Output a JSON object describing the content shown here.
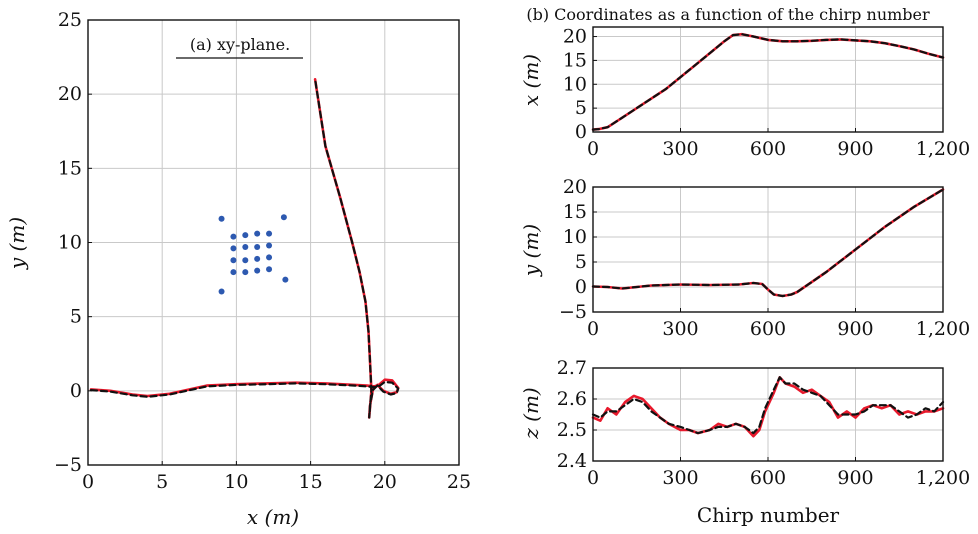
{
  "chart_data": [
    {
      "type": "line",
      "panel": "a",
      "title": "(a) xy-plane.",
      "xlabel": "x (m)",
      "ylabel": "y (m)",
      "xlim": [
        0,
        25
      ],
      "ylim": [
        -5,
        25
      ],
      "xticks": [
        0,
        5,
        10,
        15,
        20,
        25
      ],
      "yticks": [
        -5,
        0,
        5,
        10,
        15,
        20,
        25
      ],
      "grid": true,
      "series": [
        {
          "style": "solid",
          "color": "#e8192c",
          "x": [
            0.2,
            1.5,
            3.0,
            4.0,
            5.5,
            8.0,
            10.0,
            12.0,
            14.0,
            16.0,
            18.0,
            18.8,
            19.3,
            19.6,
            20.0,
            20.5,
            20.9,
            20.8,
            20.4,
            19.9,
            19.5,
            19.2,
            19.0,
            18.95,
            19.1,
            19.0,
            18.9,
            18.7,
            18.3,
            17.8,
            17.0,
            16.0,
            15.3
          ],
          "y": [
            0.1,
            0.0,
            -0.25,
            -0.35,
            -0.2,
            0.35,
            0.45,
            0.5,
            0.55,
            0.5,
            0.4,
            0.35,
            0.3,
            0.4,
            0.75,
            0.7,
            0.2,
            -0.1,
            -0.2,
            0.0,
            0.4,
            0.1,
            -1.0,
            -1.8,
            0.0,
            2.0,
            4.0,
            6.0,
            8.0,
            10.0,
            13.0,
            16.5,
            21.0
          ]
        },
        {
          "style": "dashed",
          "color": "#111111",
          "x": [
            0.2,
            1.5,
            3.0,
            4.0,
            5.5,
            8.0,
            10.0,
            12.0,
            14.0,
            16.0,
            18.0,
            18.8,
            19.3,
            19.6,
            20.0,
            20.5,
            20.9,
            20.8,
            20.4,
            19.9,
            19.5,
            19.2,
            19.0,
            18.95,
            19.1,
            19.0,
            18.9,
            18.7,
            18.3,
            17.8,
            17.0,
            16.0,
            15.3
          ],
          "y": [
            0.05,
            -0.05,
            -0.3,
            -0.4,
            -0.25,
            0.3,
            0.4,
            0.45,
            0.5,
            0.45,
            0.35,
            0.3,
            0.25,
            0.3,
            0.6,
            0.55,
            0.15,
            -0.15,
            -0.25,
            -0.05,
            0.35,
            0.05,
            -1.0,
            -1.8,
            0.0,
            2.0,
            4.0,
            6.0,
            8.0,
            10.0,
            13.0,
            16.5,
            21.0
          ]
        }
      ],
      "scatter": {
        "color": "#2d59b0",
        "x": [
          9.0,
          13.2,
          9.0,
          13.3,
          9.8,
          10.6,
          11.4,
          12.2,
          9.8,
          10.6,
          11.4,
          12.2,
          9.8,
          10.6,
          11.4,
          12.2,
          9.8,
          10.6,
          11.4,
          12.2
        ],
        "y": [
          11.6,
          11.7,
          6.7,
          7.5,
          10.4,
          10.5,
          10.6,
          10.6,
          9.6,
          9.7,
          9.7,
          9.8,
          8.8,
          8.8,
          8.9,
          9.0,
          8.0,
          8.0,
          8.1,
          8.2
        ]
      }
    },
    {
      "type": "line",
      "panel": "b-x",
      "title": "(b) Coordinates as a function of the chirp number",
      "xlabel": "",
      "ylabel": "x (m)",
      "xlim": [
        0,
        1200
      ],
      "ylim": [
        0,
        22
      ],
      "xticks": [
        0,
        300,
        600,
        900,
        1200
      ],
      "xticklabels": [
        "0",
        "300",
        "600",
        "900",
        "1,200"
      ],
      "yticks": [
        0,
        5,
        10,
        15,
        20
      ],
      "grid": true,
      "x": [
        0,
        20,
        50,
        100,
        150,
        200,
        250,
        300,
        350,
        400,
        450,
        480,
        510,
        550,
        600,
        650,
        700,
        750,
        800,
        850,
        900,
        950,
        1000,
        1050,
        1100,
        1150,
        1200
      ],
      "series": [
        {
          "style": "solid",
          "color": "#e8192c",
          "values": [
            0.5,
            0.6,
            1.0,
            3.0,
            5.0,
            7.0,
            9.0,
            11.5,
            14.0,
            16.5,
            19.0,
            20.3,
            20.5,
            20.0,
            19.3,
            19.0,
            19.0,
            19.1,
            19.3,
            19.4,
            19.2,
            19.0,
            18.6,
            18.0,
            17.3,
            16.4,
            15.6
          ]
        },
        {
          "style": "dashed",
          "color": "#111111",
          "values": [
            0.5,
            0.6,
            1.0,
            3.0,
            5.0,
            7.0,
            9.0,
            11.5,
            14.0,
            16.5,
            19.0,
            20.3,
            20.5,
            20.0,
            19.3,
            19.0,
            19.0,
            19.1,
            19.3,
            19.4,
            19.2,
            19.0,
            18.6,
            18.0,
            17.3,
            16.4,
            15.6
          ]
        }
      ]
    },
    {
      "type": "line",
      "panel": "b-y",
      "title": "",
      "xlabel": "",
      "ylabel": "y (m)",
      "xlim": [
        0,
        1200
      ],
      "ylim": [
        -5,
        20
      ],
      "xticks": [
        0,
        300,
        600,
        900,
        1200
      ],
      "xticklabels": [
        "0",
        "300",
        "600",
        "900",
        "1,200"
      ],
      "yticks": [
        -5,
        0,
        5,
        10,
        15,
        20
      ],
      "grid": true,
      "x": [
        0,
        50,
        100,
        150,
        200,
        300,
        400,
        500,
        550,
        580,
        600,
        620,
        650,
        680,
        700,
        750,
        800,
        900,
        1000,
        1100,
        1200
      ],
      "series": [
        {
          "style": "solid",
          "color": "#e8192c",
          "values": [
            0.1,
            0.0,
            -0.3,
            0.0,
            0.3,
            0.5,
            0.4,
            0.5,
            0.8,
            0.6,
            -0.5,
            -1.5,
            -1.8,
            -1.5,
            -1.0,
            1.0,
            3.0,
            7.5,
            12.0,
            16.0,
            19.5
          ]
        },
        {
          "style": "dashed",
          "color": "#111111",
          "values": [
            0.1,
            0.0,
            -0.3,
            0.0,
            0.3,
            0.5,
            0.4,
            0.5,
            0.8,
            0.6,
            -0.5,
            -1.5,
            -1.8,
            -1.5,
            -1.0,
            1.0,
            3.0,
            7.5,
            12.0,
            16.0,
            19.5
          ]
        }
      ]
    },
    {
      "type": "line",
      "panel": "b-z",
      "title": "",
      "xlabel": "Chirp number",
      "ylabel": "z (m)",
      "xlim": [
        0,
        1200
      ],
      "ylim": [
        2.4,
        2.7
      ],
      "xticks": [
        0,
        300,
        600,
        900,
        1200
      ],
      "xticklabels": [
        "0",
        "300",
        "600",
        "900",
        "1,200"
      ],
      "yticks": [
        2.4,
        2.5,
        2.6,
        2.7
      ],
      "yticklabels": [
        "2.4",
        "2.5",
        "2.6",
        "2.7"
      ],
      "grid": true,
      "x": [
        0,
        25,
        50,
        80,
        110,
        140,
        170,
        200,
        230,
        260,
        300,
        330,
        360,
        400,
        430,
        460,
        490,
        520,
        550,
        570,
        590,
        620,
        640,
        660,
        690,
        720,
        750,
        780,
        810,
        840,
        870,
        900,
        930,
        960,
        990,
        1020,
        1050,
        1080,
        1110,
        1140,
        1170,
        1200
      ],
      "series": [
        {
          "style": "solid",
          "color": "#e8192c",
          "values": [
            2.54,
            2.53,
            2.57,
            2.55,
            2.59,
            2.61,
            2.6,
            2.57,
            2.54,
            2.52,
            2.5,
            2.5,
            2.49,
            2.5,
            2.52,
            2.51,
            2.52,
            2.51,
            2.48,
            2.5,
            2.56,
            2.62,
            2.67,
            2.65,
            2.64,
            2.62,
            2.63,
            2.61,
            2.59,
            2.54,
            2.56,
            2.54,
            2.57,
            2.58,
            2.57,
            2.58,
            2.55,
            2.56,
            2.55,
            2.56,
            2.56,
            2.57
          ]
        },
        {
          "style": "dashed",
          "color": "#111111",
          "values": [
            2.55,
            2.54,
            2.56,
            2.56,
            2.58,
            2.6,
            2.59,
            2.56,
            2.54,
            2.52,
            2.51,
            2.5,
            2.49,
            2.5,
            2.51,
            2.51,
            2.52,
            2.51,
            2.49,
            2.51,
            2.57,
            2.63,
            2.67,
            2.65,
            2.65,
            2.63,
            2.62,
            2.61,
            2.58,
            2.55,
            2.55,
            2.55,
            2.56,
            2.58,
            2.58,
            2.58,
            2.56,
            2.54,
            2.55,
            2.57,
            2.56,
            2.59
          ]
        }
      ]
    }
  ]
}
